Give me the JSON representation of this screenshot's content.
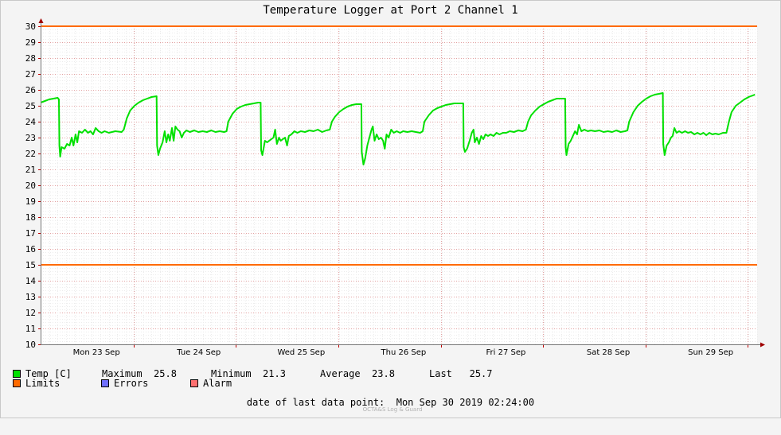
{
  "chart_data": {
    "type": "line",
    "title": "Temperature Logger at Port 2 Channel 1",
    "ylim": [
      10,
      30
    ],
    "y_ticks": [
      "10",
      "11",
      "12",
      "13",
      "14",
      "15",
      "16",
      "17",
      "18",
      "19",
      "20",
      "21",
      "22",
      "23",
      "24",
      "25",
      "26",
      "27",
      "28",
      "29",
      "30"
    ],
    "x_tick_labels": [
      "Mon 23 Sep",
      "Tue 24 Sep",
      "Wed 25 Sep",
      "Thu 26 Sep",
      "Fri 27 Sep",
      "Sat 28 Sep",
      "Sun 29 Sep"
    ],
    "grid": true,
    "x_unit_note": "hours since start of plotted window",
    "xlim": [
      0,
      168
    ],
    "series": [
      {
        "name": "Temp [C]",
        "color": "#00e000",
        "points": [
          [
            0.0,
            25.2
          ],
          [
            1.0,
            25.3
          ],
          [
            2.0,
            25.4
          ],
          [
            3.0,
            25.45
          ],
          [
            4.0,
            25.5
          ],
          [
            4.3,
            25.4
          ],
          [
            4.4,
            22.5
          ],
          [
            4.6,
            21.8
          ],
          [
            4.9,
            22.4
          ],
          [
            5.6,
            22.3
          ],
          [
            6.2,
            22.6
          ],
          [
            6.8,
            22.5
          ],
          [
            7.3,
            23.0
          ],
          [
            7.7,
            22.5
          ],
          [
            8.2,
            23.2
          ],
          [
            8.6,
            22.7
          ],
          [
            9.0,
            23.4
          ],
          [
            9.7,
            23.3
          ],
          [
            10.4,
            23.5
          ],
          [
            11.1,
            23.3
          ],
          [
            11.7,
            23.4
          ],
          [
            12.3,
            23.2
          ],
          [
            12.9,
            23.6
          ],
          [
            13.6,
            23.4
          ],
          [
            14.3,
            23.3
          ],
          [
            15.0,
            23.4
          ],
          [
            16.0,
            23.3
          ],
          [
            17.5,
            23.4
          ],
          [
            19.0,
            23.35
          ],
          [
            19.5,
            23.5
          ],
          [
            20.2,
            24.2
          ],
          [
            21.0,
            24.7
          ],
          [
            22.0,
            25.0
          ],
          [
            23.0,
            25.2
          ],
          [
            24.0,
            25.35
          ],
          [
            25.0,
            25.45
          ],
          [
            26.0,
            25.55
          ],
          [
            27.2,
            25.6
          ],
          [
            27.3,
            22.5
          ],
          [
            27.6,
            21.9
          ],
          [
            28.0,
            22.3
          ],
          [
            28.6,
            22.7
          ],
          [
            29.1,
            23.4
          ],
          [
            29.5,
            22.7
          ],
          [
            29.9,
            23.2
          ],
          [
            30.3,
            22.8
          ],
          [
            30.8,
            23.6
          ],
          [
            31.2,
            22.8
          ],
          [
            31.6,
            23.7
          ],
          [
            32.1,
            23.5
          ],
          [
            32.6,
            23.4
          ],
          [
            33.1,
            23.0
          ],
          [
            33.6,
            23.3
          ],
          [
            34.2,
            23.45
          ],
          [
            35.0,
            23.35
          ],
          [
            36.0,
            23.45
          ],
          [
            37.0,
            23.35
          ],
          [
            38.0,
            23.4
          ],
          [
            39.0,
            23.35
          ],
          [
            40.0,
            23.45
          ],
          [
            41.0,
            23.35
          ],
          [
            42.0,
            23.4
          ],
          [
            43.0,
            23.35
          ],
          [
            43.6,
            23.4
          ],
          [
            44.0,
            24.0
          ],
          [
            45.0,
            24.5
          ],
          [
            46.0,
            24.8
          ],
          [
            47.0,
            24.95
          ],
          [
            48.0,
            25.05
          ],
          [
            49.0,
            25.1
          ],
          [
            50.0,
            25.15
          ],
          [
            51.0,
            25.2
          ],
          [
            51.6,
            25.2
          ],
          [
            51.7,
            22.2
          ],
          [
            52.0,
            21.9
          ],
          [
            52.6,
            22.8
          ],
          [
            53.1,
            22.7
          ],
          [
            53.6,
            22.8
          ],
          [
            54.1,
            22.9
          ],
          [
            54.6,
            23.0
          ],
          [
            55.0,
            23.5
          ],
          [
            55.4,
            22.6
          ],
          [
            55.9,
            23.0
          ],
          [
            56.3,
            22.8
          ],
          [
            56.8,
            22.9
          ],
          [
            57.3,
            23.0
          ],
          [
            57.8,
            22.5
          ],
          [
            58.2,
            23.1
          ],
          [
            58.8,
            23.2
          ],
          [
            59.5,
            23.4
          ],
          [
            60.2,
            23.3
          ],
          [
            61.0,
            23.4
          ],
          [
            62.0,
            23.35
          ],
          [
            63.0,
            23.45
          ],
          [
            64.0,
            23.4
          ],
          [
            65.0,
            23.5
          ],
          [
            66.0,
            23.35
          ],
          [
            67.0,
            23.45
          ],
          [
            67.8,
            23.5
          ],
          [
            68.3,
            24.0
          ],
          [
            69.0,
            24.3
          ],
          [
            70.0,
            24.6
          ],
          [
            71.0,
            24.8
          ],
          [
            72.0,
            24.95
          ],
          [
            73.0,
            25.05
          ],
          [
            74.0,
            25.1
          ],
          [
            75.2,
            25.1
          ],
          [
            75.3,
            22.1
          ],
          [
            75.7,
            21.3
          ],
          [
            76.1,
            21.7
          ],
          [
            76.6,
            22.5
          ],
          [
            77.1,
            23.0
          ],
          [
            77.6,
            23.5
          ],
          [
            77.9,
            23.7
          ],
          [
            78.3,
            22.8
          ],
          [
            78.8,
            23.2
          ],
          [
            79.3,
            22.9
          ],
          [
            79.8,
            23.0
          ],
          [
            80.3,
            22.8
          ],
          [
            80.7,
            22.3
          ],
          [
            81.1,
            23.2
          ],
          [
            81.6,
            23.0
          ],
          [
            82.2,
            23.5
          ],
          [
            82.8,
            23.3
          ],
          [
            83.5,
            23.4
          ],
          [
            84.3,
            23.3
          ],
          [
            85.0,
            23.4
          ],
          [
            86.0,
            23.35
          ],
          [
            87.0,
            23.4
          ],
          [
            88.0,
            23.35
          ],
          [
            89.0,
            23.3
          ],
          [
            89.6,
            23.4
          ],
          [
            90.0,
            24.0
          ],
          [
            91.0,
            24.4
          ],
          [
            92.0,
            24.7
          ],
          [
            93.0,
            24.85
          ],
          [
            94.0,
            24.95
          ],
          [
            95.0,
            25.05
          ],
          [
            96.0,
            25.1
          ],
          [
            97.0,
            25.15
          ],
          [
            99.1,
            25.15
          ],
          [
            99.2,
            22.4
          ],
          [
            99.5,
            22.1
          ],
          [
            100.0,
            22.3
          ],
          [
            100.6,
            22.8
          ],
          [
            101.1,
            23.3
          ],
          [
            101.5,
            23.5
          ],
          [
            101.8,
            22.7
          ],
          [
            102.3,
            23.0
          ],
          [
            102.8,
            22.6
          ],
          [
            103.3,
            23.1
          ],
          [
            103.8,
            22.9
          ],
          [
            104.3,
            23.2
          ],
          [
            104.9,
            23.1
          ],
          [
            105.5,
            23.2
          ],
          [
            106.2,
            23.1
          ],
          [
            106.9,
            23.3
          ],
          [
            107.6,
            23.2
          ],
          [
            108.4,
            23.3
          ],
          [
            109.2,
            23.3
          ],
          [
            110.0,
            23.4
          ],
          [
            111.0,
            23.35
          ],
          [
            112.0,
            23.45
          ],
          [
            113.0,
            23.4
          ],
          [
            113.8,
            23.5
          ],
          [
            114.3,
            24.0
          ],
          [
            115.0,
            24.4
          ],
          [
            116.0,
            24.7
          ],
          [
            117.0,
            24.95
          ],
          [
            118.0,
            25.1
          ],
          [
            119.0,
            25.25
          ],
          [
            120.0,
            25.35
          ],
          [
            121.0,
            25.45
          ],
          [
            123.0,
            25.45
          ],
          [
            123.1,
            22.4
          ],
          [
            123.3,
            21.9
          ],
          [
            123.8,
            22.6
          ],
          [
            124.3,
            22.8
          ],
          [
            124.8,
            23.1
          ],
          [
            125.3,
            23.4
          ],
          [
            125.8,
            23.2
          ],
          [
            126.2,
            23.8
          ],
          [
            126.8,
            23.4
          ],
          [
            127.5,
            23.5
          ],
          [
            128.3,
            23.4
          ],
          [
            129.0,
            23.45
          ],
          [
            130.0,
            23.4
          ],
          [
            131.0,
            23.45
          ],
          [
            132.0,
            23.35
          ],
          [
            133.0,
            23.4
          ],
          [
            134.0,
            23.35
          ],
          [
            135.0,
            23.45
          ],
          [
            136.0,
            23.35
          ],
          [
            137.0,
            23.4
          ],
          [
            137.6,
            23.45
          ],
          [
            138.0,
            24.0
          ],
          [
            139.0,
            24.6
          ],
          [
            140.0,
            25.0
          ],
          [
            141.0,
            25.25
          ],
          [
            142.0,
            25.45
          ],
          [
            143.0,
            25.6
          ],
          [
            144.0,
            25.7
          ],
          [
            145.0,
            25.75
          ],
          [
            145.9,
            25.8
          ],
          [
            146.0,
            22.6
          ],
          [
            146.3,
            21.9
          ],
          [
            146.8,
            22.5
          ],
          [
            147.3,
            22.7
          ],
          [
            147.8,
            23.0
          ],
          [
            148.2,
            23.1
          ],
          [
            148.6,
            23.6
          ],
          [
            149.1,
            23.3
          ],
          [
            149.7,
            23.4
          ],
          [
            150.4,
            23.3
          ],
          [
            151.1,
            23.4
          ],
          [
            151.8,
            23.3
          ],
          [
            152.5,
            23.35
          ],
          [
            153.3,
            23.2
          ],
          [
            154.0,
            23.3
          ],
          [
            154.7,
            23.2
          ],
          [
            155.4,
            23.3
          ],
          [
            156.1,
            23.15
          ],
          [
            156.8,
            23.3
          ],
          [
            157.5,
            23.2
          ],
          [
            158.2,
            23.25
          ],
          [
            159.0,
            23.2
          ],
          [
            160.0,
            23.3
          ],
          [
            160.8,
            23.3
          ],
          [
            161.4,
            24.0
          ],
          [
            162.0,
            24.6
          ],
          [
            163.0,
            25.0
          ],
          [
            164.0,
            25.2
          ],
          [
            165.0,
            25.4
          ],
          [
            166.0,
            25.55
          ],
          [
            167.0,
            25.65
          ],
          [
            167.5,
            25.7
          ]
        ]
      },
      {
        "name": "Limits",
        "color": "#ff6a00",
        "values": [
          15,
          30
        ]
      }
    ]
  },
  "legend": {
    "temp_label": "Temp [C]",
    "maximum_label": "Maximum",
    "maximum_value": "25.8",
    "minimum_label": "Minimum",
    "minimum_value": "21.3",
    "average_label": "Average",
    "average_value": "23.8",
    "last_label": "Last",
    "last_value": "25.7",
    "limits_label": "Limits",
    "errors_label": "Errors",
    "alarm_label": "Alarm",
    "colors": {
      "temp": "#00e000",
      "limits": "#ff6a00",
      "errors": "#7070ff",
      "alarm": "#ff7070"
    }
  },
  "footer": {
    "date_label": "date of last data point:",
    "date_value": "Mon Sep 30 2019 02:24:00",
    "watermark": "OCTA&S Log & Guard"
  }
}
